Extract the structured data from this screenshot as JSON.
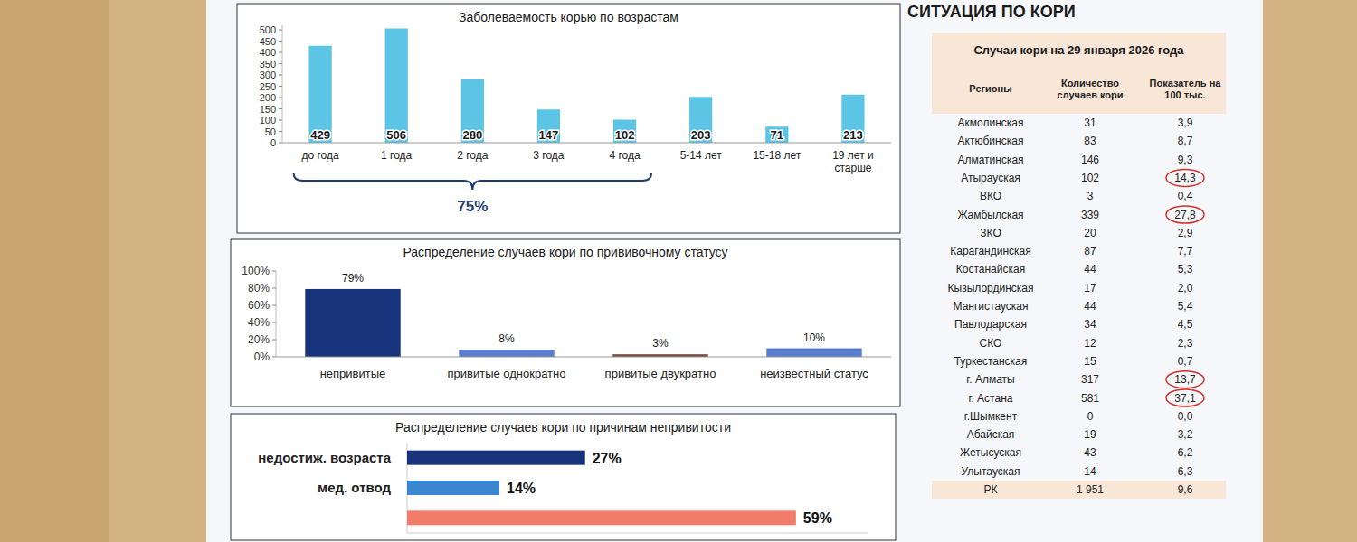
{
  "header": "СИТУАЦИЯ ПО КОРИ",
  "chart_data": [
    {
      "type": "bar",
      "title": "Заболеваемость корью по возрастам",
      "categories": [
        "до года",
        "1 года",
        "2 года",
        "3 года",
        "4 года",
        "5-14 лет",
        "15-18 лет",
        "19 лет и старше"
      ],
      "values": [
        429,
        506,
        280,
        147,
        102,
        203,
        71,
        213
      ],
      "color": "#5cc5e6",
      "ylim": [
        0,
        520
      ],
      "yticks": [
        0,
        50,
        100,
        150,
        200,
        250,
        300,
        350,
        400,
        450,
        500
      ],
      "grid": false,
      "data_labels": true,
      "annotation": "75%"
    },
    {
      "type": "bar",
      "title": "Распределение случаев кори по прививочному статусу",
      "categories": [
        "непривитые",
        "привитые однократно",
        "привитые двукратно",
        "неизвестный статус"
      ],
      "values": [
        79,
        8,
        3,
        10
      ],
      "value_labels": [
        "79%",
        "8%",
        "3%",
        "10%"
      ],
      "colors": [
        "#17337c",
        "#5a7fd0",
        "#7a5040",
        "#5a7fd0"
      ],
      "ylim": [
        0,
        100
      ],
      "yticks": [
        {
          "value": 0,
          "label": "0%"
        },
        {
          "value": 20,
          "label": "20%"
        },
        {
          "value": 40,
          "label": "40%"
        },
        {
          "value": 60,
          "label": "60%"
        },
        {
          "value": 80,
          "label": "80%"
        },
        {
          "value": 100,
          "label": "100%"
        }
      ],
      "grid": false,
      "data_labels": true
    },
    {
      "type": "bar",
      "orientation": "horizontal",
      "title": "Распределение случаев кори по причинам непривитости",
      "categories": [
        "недостиж. возраста",
        "мед. отвод",
        null
      ],
      "values": [
        27,
        14,
        59
      ],
      "value_labels": [
        "27%",
        "14%",
        "59%"
      ],
      "colors": [
        "#17337c",
        "#3a86d0",
        "#f27c6a"
      ],
      "xlim": [
        0,
        70
      ],
      "tick_labels": "y",
      "grid": false,
      "data_labels": true
    }
  ],
  "table": {
    "title": "Случаи кори на 29 января 2026 года",
    "columns": [
      "Регионы",
      "Количество случаев кори",
      "Показатель на 100 тыс."
    ],
    "rows": [
      [
        "Акмолинская",
        "31",
        "3,9"
      ],
      [
        "Актюбинская",
        "83",
        "8,7"
      ],
      [
        "Алматинская",
        "146",
        "9,3"
      ],
      [
        "Атырауская",
        "102",
        "14,3"
      ],
      [
        "ВКО",
        "3",
        "0,4"
      ],
      [
        "Жамбылская",
        "339",
        "27,8"
      ],
      [
        "ЗКО",
        "20",
        "2,9"
      ],
      [
        "Карагандинская",
        "87",
        "7,7"
      ],
      [
        "Костанайская",
        "44",
        "5,3"
      ],
      [
        "Кызылординская",
        "17",
        "2,0"
      ],
      [
        "Мангистауская",
        "44",
        "5,4"
      ],
      [
        "Павлодарская",
        "34",
        "4,5"
      ],
      [
        "СКО",
        "12",
        "2,3"
      ],
      [
        "Туркестанская",
        "15",
        "0,7"
      ],
      [
        "г. Алматы",
        "317",
        "13,7"
      ],
      [
        "г. Астана",
        "581",
        "37,1"
      ],
      [
        "г.Шымкент",
        "0",
        "0,0"
      ],
      [
        "Абайская",
        "19",
        "3,2"
      ],
      [
        "Жетысуская",
        "43",
        "6,2"
      ],
      [
        "Улытауская",
        "14",
        "6,3"
      ],
      [
        "РК",
        "1 951",
        "9,6"
      ]
    ],
    "highlight_rows": [
      3,
      5,
      14,
      15
    ]
  }
}
